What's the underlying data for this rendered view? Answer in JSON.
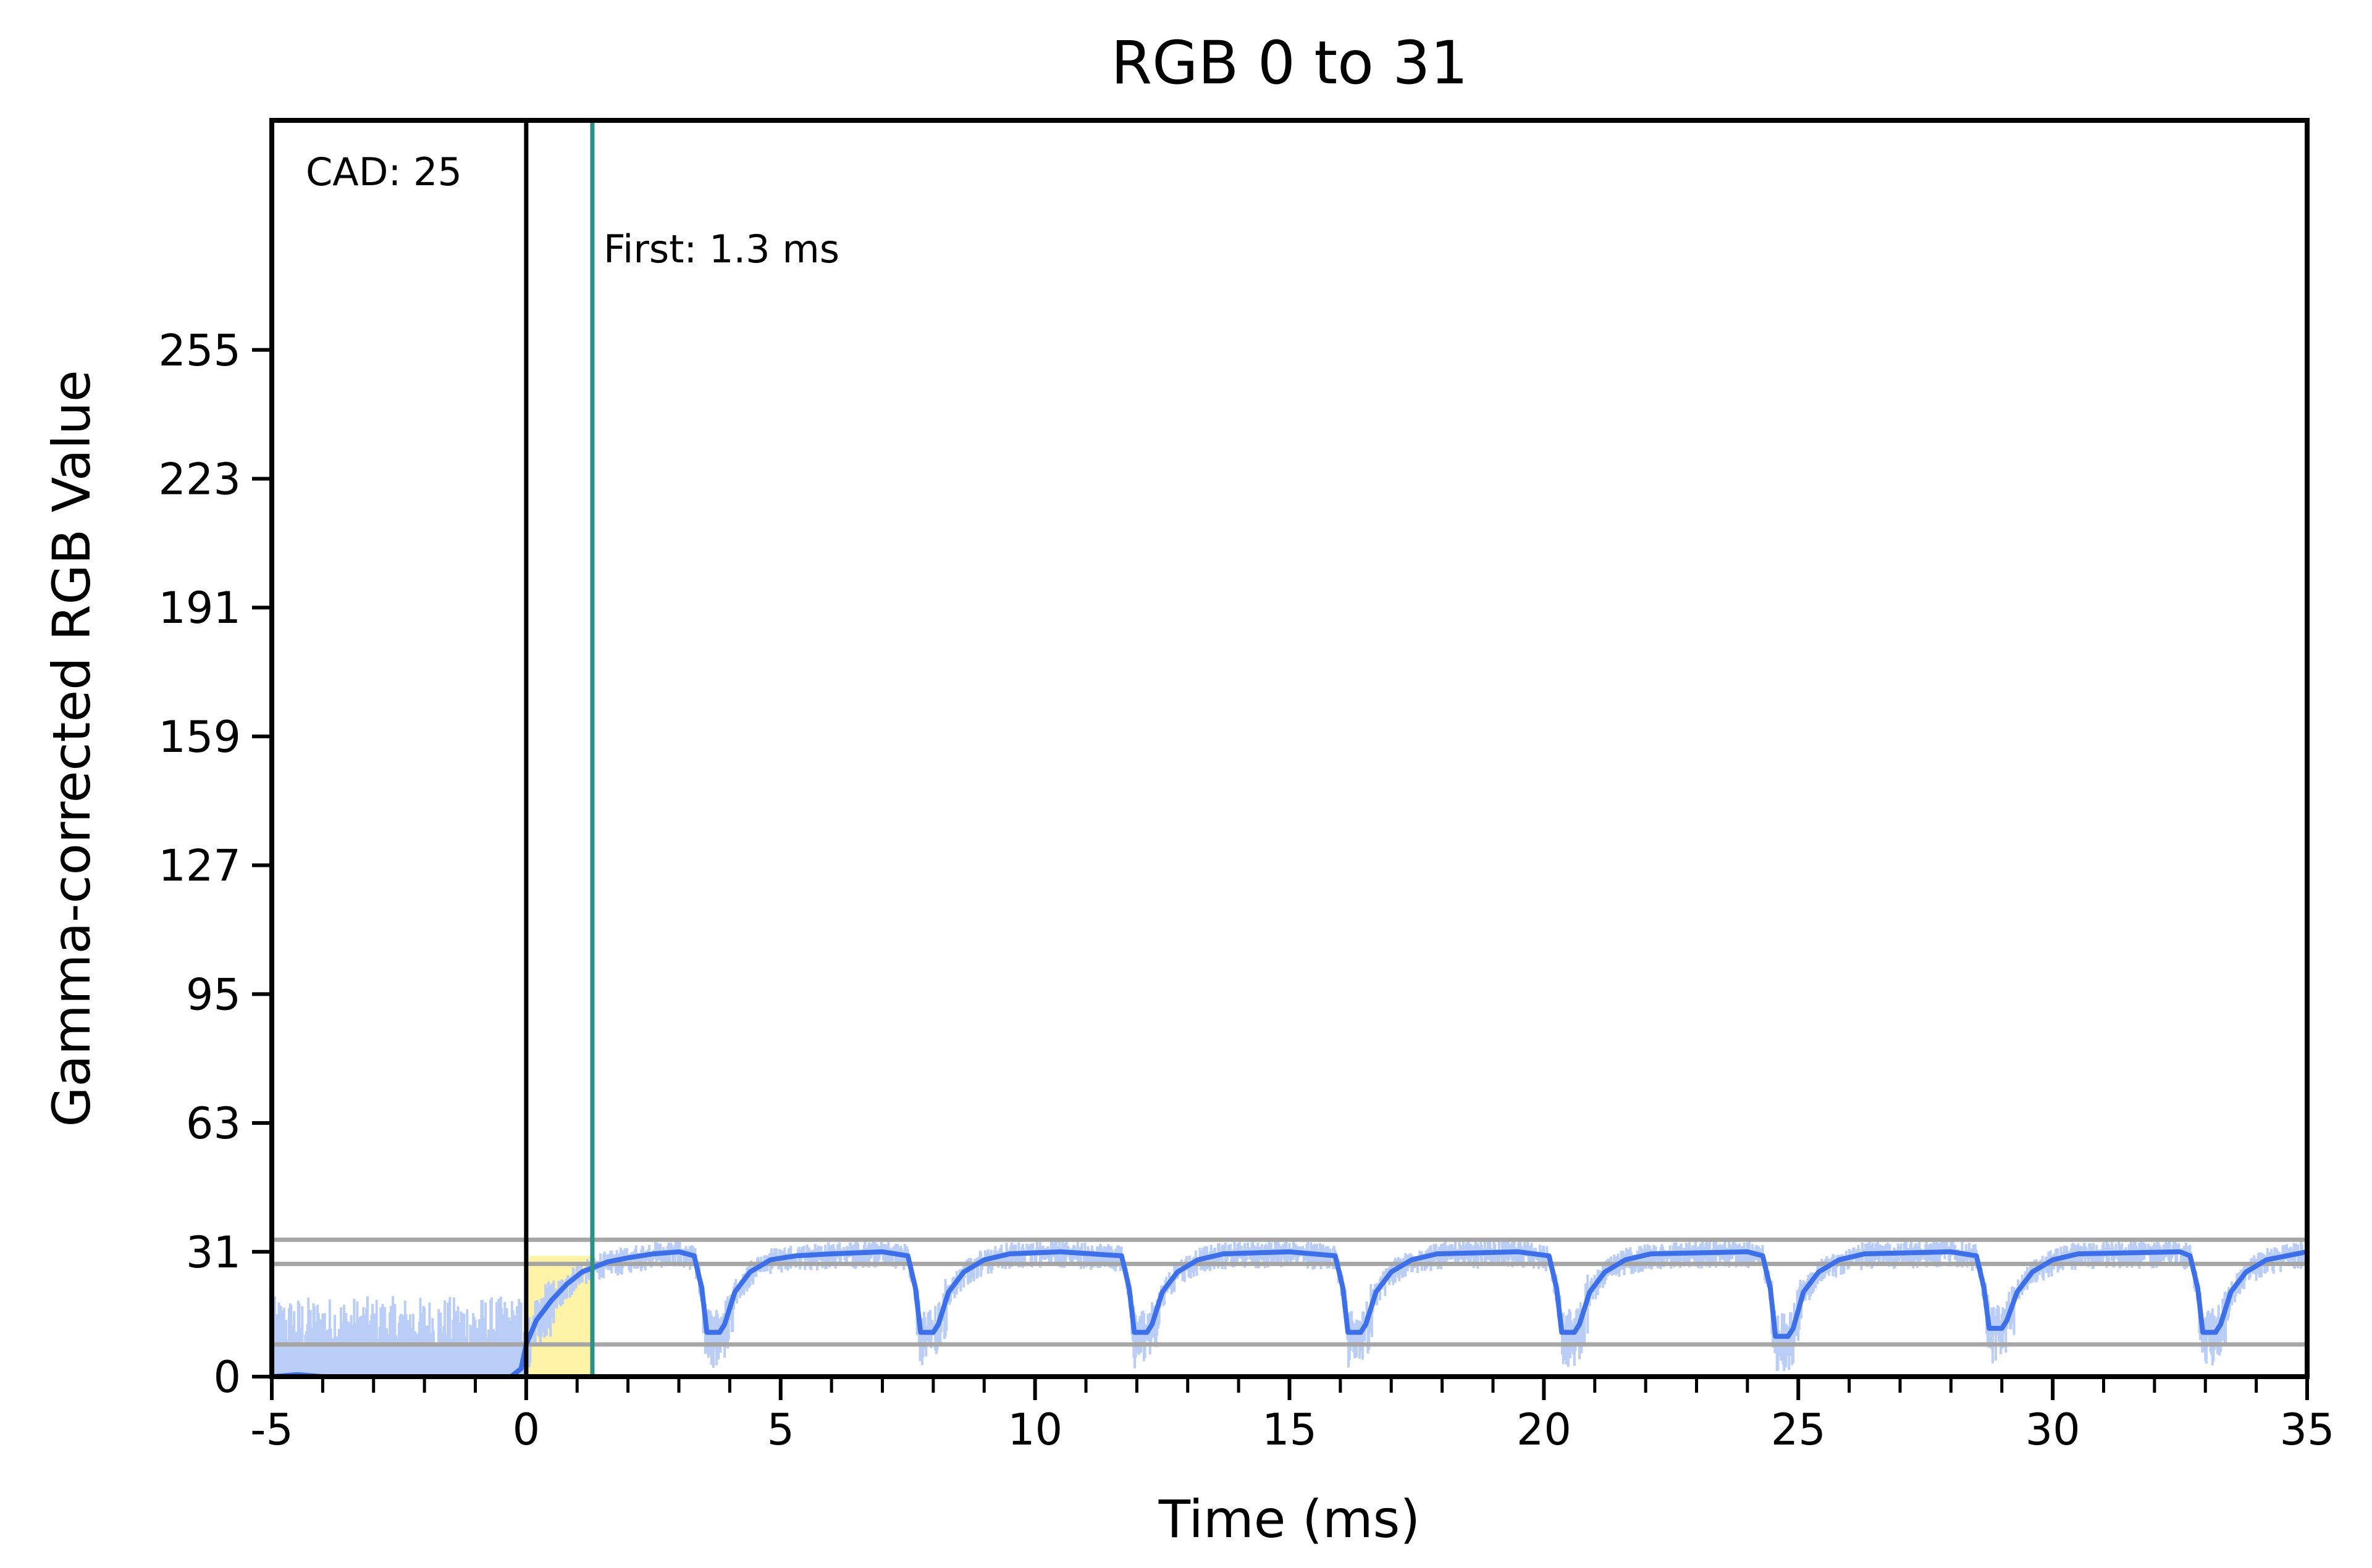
{
  "chart_data": {
    "type": "line",
    "title": "RGB 0 to 31",
    "xlabel": "Time (ms)",
    "ylabel": "Gamma-corrected RGB Value",
    "xlim": [
      -5,
      35
    ],
    "ylim": [
      0,
      312
    ],
    "x_ticks": [
      -5,
      0,
      5,
      10,
      15,
      20,
      25,
      30,
      35
    ],
    "y_ticks": [
      0,
      31,
      63,
      95,
      127,
      159,
      191,
      223,
      255
    ],
    "grid": false,
    "reference_lines_y": [
      8,
      28,
      34
    ],
    "cad_label": "CAD: 25",
    "first_label": "First: 1.3 ms",
    "first_x": 1.3,
    "start_x": 0,
    "highlight_region": {
      "x0": 0,
      "x1": 1.3,
      "color": "#fff3a8"
    },
    "colors": {
      "smoothed": "#3d6fe8",
      "raw": "#b9cdf7",
      "reference": "#a6a6a6",
      "first_line": "#2a9187",
      "start_line": "#000000"
    },
    "series": [
      {
        "name": "",
        "x": [
          -5,
          -4.5,
          -4,
          -3,
          -2,
          -1,
          -0.5,
          -0.3,
          -0.1,
          0,
          0.2,
          0.5,
          0.8,
          1.1,
          1.3,
          1.6,
          2.0,
          2.5,
          3.0,
          3.3,
          3.45,
          3.55,
          3.8,
          3.9,
          4.1,
          4.4,
          4.8,
          5.3,
          6,
          7,
          7.5,
          7.65,
          7.75,
          8.0,
          8.1,
          8.3,
          8.6,
          9.0,
          9.5,
          10.5,
          11.7,
          11.85,
          11.95,
          12.2,
          12.3,
          12.5,
          12.8,
          13.2,
          13.7,
          15,
          15.9,
          16.05,
          16.15,
          16.4,
          16.5,
          16.7,
          17.0,
          17.4,
          17.9,
          19.5,
          20.1,
          20.25,
          20.35,
          20.6,
          20.7,
          20.9,
          21.2,
          21.6,
          22.1,
          24,
          24.3,
          24.45,
          24.55,
          24.8,
          24.9,
          25.1,
          25.4,
          25.8,
          26.3,
          28,
          28.5,
          28.65,
          28.75,
          29.0,
          29.1,
          29.3,
          29.6,
          30.0,
          30.5,
          32.5,
          32.7,
          32.85,
          32.95,
          33.2,
          33.3,
          33.5,
          33.8,
          34.2,
          35
        ],
        "y": [
          0,
          0.5,
          0,
          0,
          0,
          0,
          0,
          0,
          2,
          8,
          14,
          19,
          23,
          26,
          27,
          28.5,
          29.5,
          30.5,
          31,
          30,
          22,
          11,
          11,
          13,
          21,
          26,
          29,
          30,
          30.5,
          31,
          30,
          22,
          11,
          11,
          13,
          21,
          26,
          29,
          30.5,
          31,
          30,
          22,
          11,
          11,
          13,
          21,
          26,
          29,
          30.5,
          31,
          30,
          22,
          11,
          11,
          13,
          21,
          26,
          29,
          30.5,
          31,
          30,
          22,
          11,
          11,
          13,
          21,
          26,
          29,
          30.5,
          31,
          30,
          22,
          10,
          10,
          12,
          21,
          26,
          29,
          30.5,
          31,
          30,
          22,
          12,
          12,
          14,
          21,
          26,
          29,
          30.5,
          31,
          30,
          22,
          11,
          11,
          13,
          21,
          26,
          29,
          31
        ]
      }
    ]
  }
}
